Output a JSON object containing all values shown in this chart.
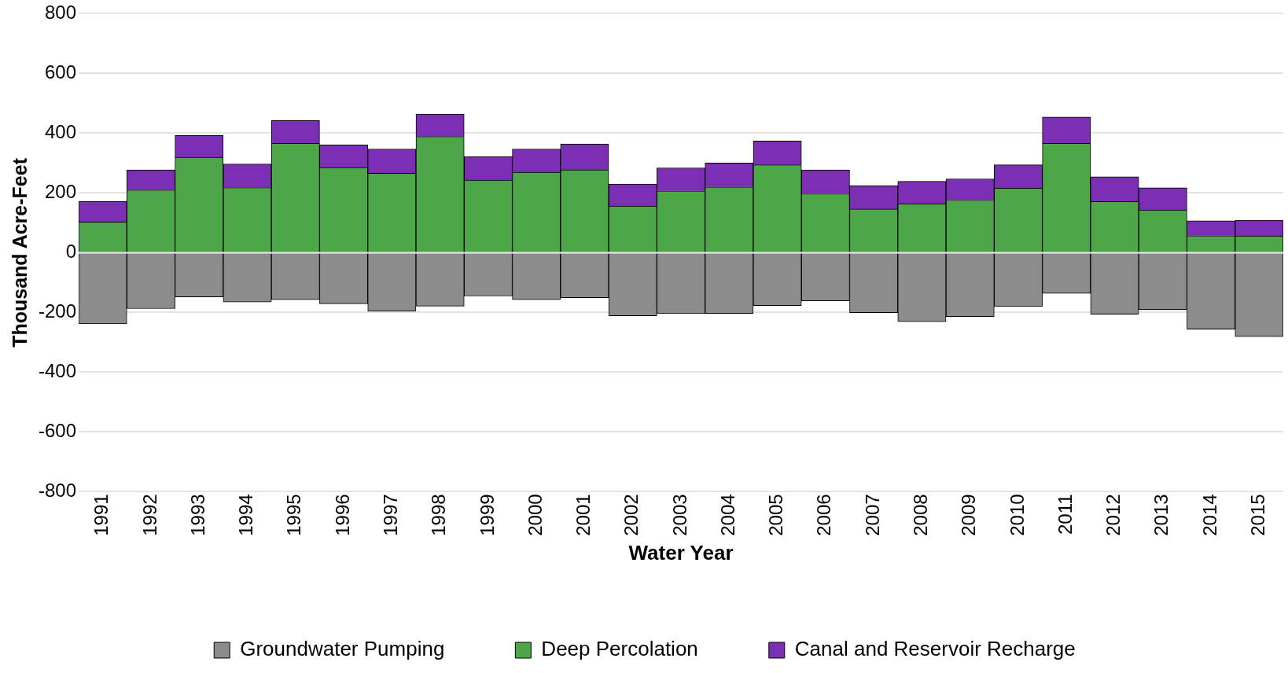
{
  "chart_data": {
    "type": "bar",
    "stacked": true,
    "xlabel": "Water Year",
    "ylabel": "Thousand Acre-Feet",
    "categories": [
      "1991",
      "1992",
      "1993",
      "1994",
      "1995",
      "1996",
      "1997",
      "1998",
      "1999",
      "2000",
      "2001",
      "2002",
      "2003",
      "2004",
      "2005",
      "2006",
      "2007",
      "2008",
      "2009",
      "2010",
      "2011",
      "2012",
      "2013",
      "2014",
      "2015"
    ],
    "series": [
      {
        "name": "Groundwater Pumping",
        "color": "#8c8c8c",
        "values": [
          -238,
          -187,
          -148,
          -165,
          -157,
          -171,
          -196,
          -179,
          -145,
          -157,
          -151,
          -211,
          -204,
          -203,
          -177,
          -161,
          -201,
          -231,
          -214,
          -180,
          -136,
          -206,
          -190,
          -256,
          -281
        ]
      },
      {
        "name": "Deep Percolation",
        "color": "#4ea64a",
        "values": [
          103,
          210,
          319,
          218,
          366,
          285,
          266,
          389,
          243,
          269,
          277,
          156,
          207,
          220,
          294,
          197,
          146,
          164,
          176,
          216,
          366,
          171,
          143,
          57,
          56
        ]
      },
      {
        "name": "Canal and Reservoir Recharge",
        "color": "#7b2fb5",
        "values": [
          68,
          67,
          73,
          79,
          76,
          76,
          81,
          75,
          79,
          78,
          87,
          74,
          77,
          80,
          80,
          80,
          78,
          75,
          71,
          78,
          88,
          83,
          74,
          50,
          53
        ]
      }
    ],
    "ylim": [
      -800,
      800
    ],
    "yticks": [
      -800,
      -600,
      -400,
      -200,
      0,
      200,
      400,
      600,
      800
    ],
    "grid": "y",
    "legend": "bottom"
  }
}
